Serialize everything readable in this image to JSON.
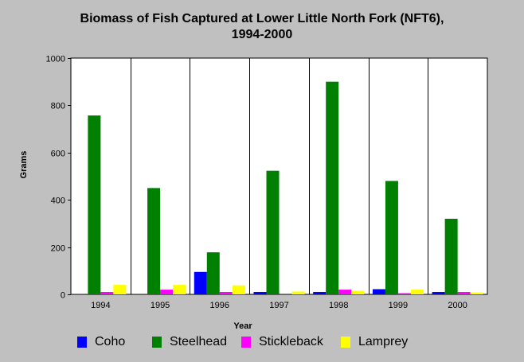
{
  "chart_data": {
    "type": "bar",
    "title_lines": [
      "Biomass of Fish Captured at Lower Little North Fork (NFT6),",
      "1994-2000"
    ],
    "xlabel": "Year",
    "ylabel": "Grams",
    "ylim": [
      0,
      1000
    ],
    "yticks": [
      0,
      200,
      400,
      600,
      800,
      1000
    ],
    "grid": "vertical lines between years",
    "legend_position": "bottom",
    "categories": [
      "1994",
      "1995",
      "1996",
      "1997",
      "1998",
      "1999",
      "2000"
    ],
    "series": [
      {
        "name": "Coho",
        "color": "#0000ff",
        "values": [
          0,
          0,
          95,
          10,
          10,
          22,
          10
        ]
      },
      {
        "name": "Steelhead",
        "color": "#008000",
        "values": [
          757,
          450,
          178,
          523,
          900,
          480,
          320
        ]
      },
      {
        "name": "Stickleback",
        "color": "#ff00ff",
        "values": [
          10,
          20,
          10,
          0,
          20,
          5,
          10
        ]
      },
      {
        "name": "Lamprey",
        "color": "#ffff00",
        "values": [
          40,
          40,
          38,
          12,
          15,
          20,
          8
        ]
      }
    ]
  }
}
